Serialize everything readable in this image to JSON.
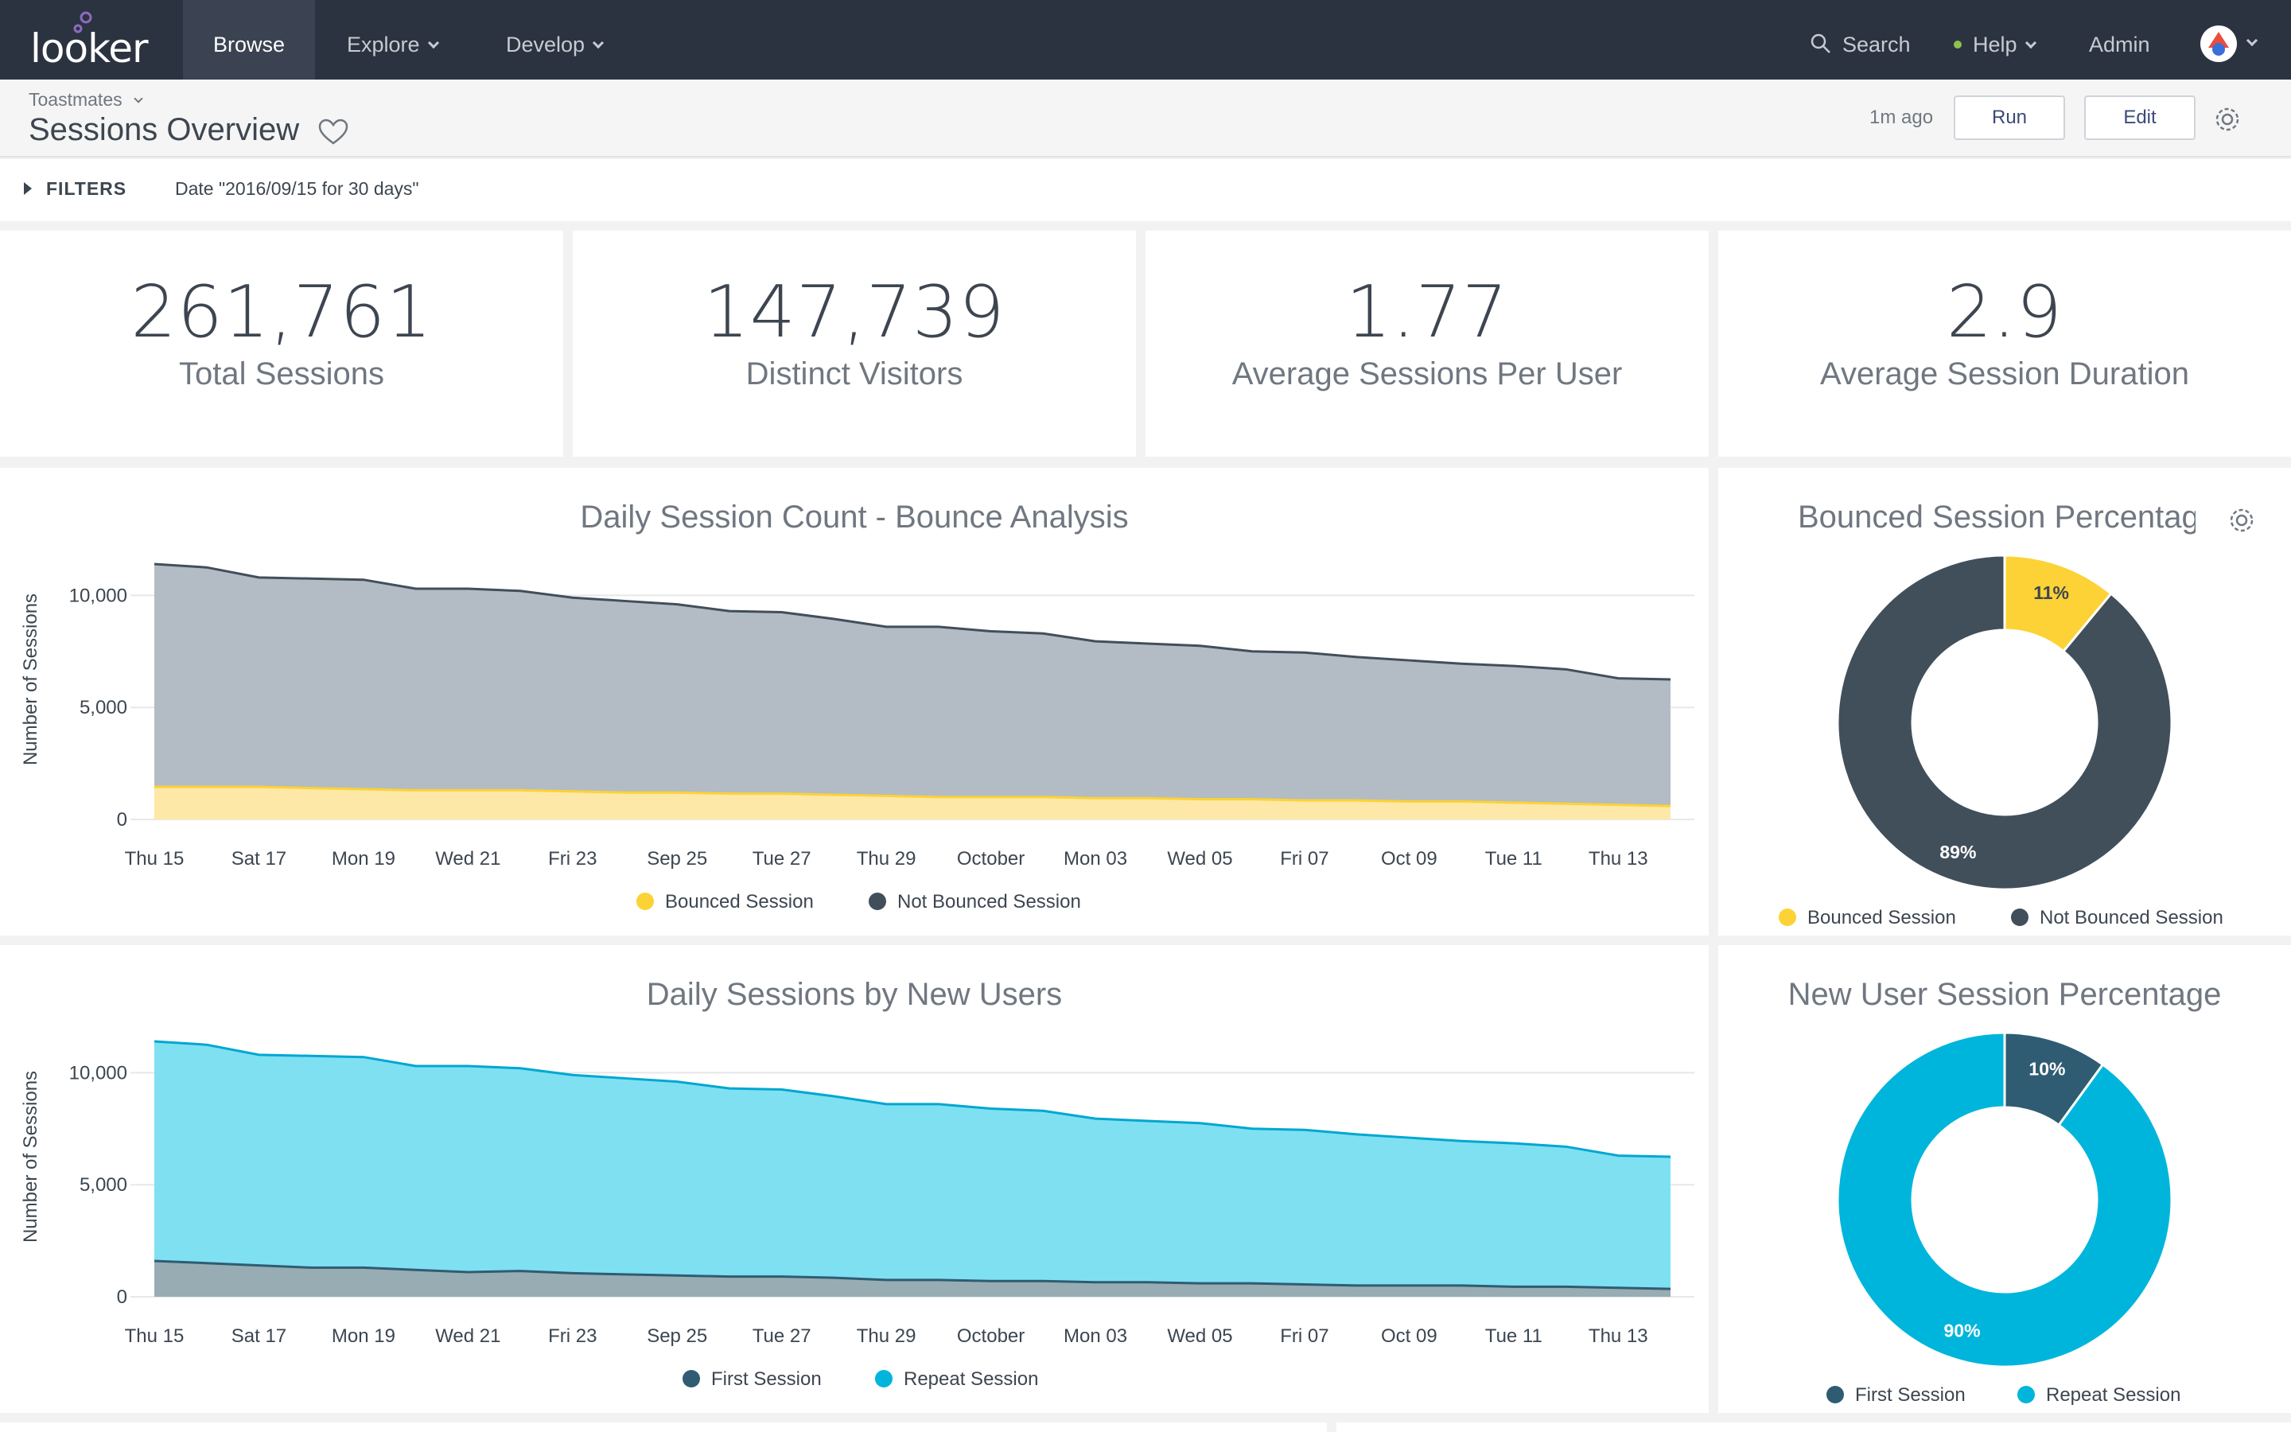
{
  "nav": {
    "logo": "looker",
    "items": [
      {
        "label": "Browse",
        "active": true
      },
      {
        "label": "Explore",
        "dropdown": true
      },
      {
        "label": "Develop",
        "dropdown": true
      }
    ],
    "search_label": "Search",
    "help_label": "Help",
    "admin_label": "Admin"
  },
  "header": {
    "breadcrumb": "Toastmates",
    "title": "Sessions Overview",
    "last_run": "1m ago",
    "run_label": "Run",
    "edit_label": "Edit"
  },
  "filters": {
    "label": "FILTERS",
    "value": "Date \"2016/09/15 for 30 days\""
  },
  "kpis": [
    {
      "value": "261,761",
      "label": "Total Sessions"
    },
    {
      "value": "147,739",
      "label": "Distinct Visitors"
    },
    {
      "value": "1.77",
      "label": "Average Sessions Per User"
    },
    {
      "value": "2.9",
      "label": "Average Session Duration"
    }
  ],
  "colors": {
    "nav_bg": "#2c3340",
    "dark_slate": "#414f5b",
    "gray_area": "#b3bcc4",
    "yellow": "#fcd236",
    "yellow_area": "#fde8a8",
    "cyan": "#00b5dc",
    "cyan_area": "#7fe0f2",
    "cyan_line": "#00a7d0",
    "teal_dark": "#2f5c72",
    "first_area": "#98acb3"
  },
  "chart_data": [
    {
      "type": "area",
      "title": "Daily Session Count - Bounce Analysis",
      "ylabel": "Number of Sessions",
      "ylim": [
        0,
        12500
      ],
      "yticks": [
        "0",
        "5,000",
        "10,000"
      ],
      "ytick_values": [
        0,
        5000,
        10000
      ],
      "xtick_labels": [
        "Thu 15",
        "Sat 17",
        "Mon 19",
        "Wed 21",
        "Fri 23",
        "Sep 25",
        "Tue 27",
        "Thu 29",
        "October",
        "Mon 03",
        "Wed 05",
        "Fri 07",
        "Oct 09",
        "Tue 11",
        "Thu 13"
      ],
      "x": [
        "2016-09-15",
        "2016-09-16",
        "2016-09-17",
        "2016-09-18",
        "2016-09-19",
        "2016-09-20",
        "2016-09-21",
        "2016-09-22",
        "2016-09-23",
        "2016-09-24",
        "2016-09-25",
        "2016-09-26",
        "2016-09-27",
        "2016-09-28",
        "2016-09-29",
        "2016-09-30",
        "2016-10-01",
        "2016-10-02",
        "2016-10-03",
        "2016-10-04",
        "2016-10-05",
        "2016-10-06",
        "2016-10-07",
        "2016-10-08",
        "2016-10-09",
        "2016-10-10",
        "2016-10-11",
        "2016-10-12",
        "2016-10-13",
        "2016-10-14"
      ],
      "stacked": true,
      "series": [
        {
          "name": "Bounced Session",
          "values": [
            1450,
            1450,
            1450,
            1400,
            1350,
            1300,
            1300,
            1300,
            1250,
            1200,
            1200,
            1150,
            1150,
            1100,
            1050,
            1000,
            1000,
            1000,
            950,
            950,
            900,
            900,
            850,
            850,
            800,
            800,
            750,
            700,
            650,
            600
          ]
        },
        {
          "name": "Not Bounced Session",
          "values": [
            9950,
            9800,
            9350,
            9350,
            9350,
            9000,
            9000,
            8900,
            8650,
            8550,
            8400,
            8150,
            8100,
            7850,
            7550,
            7600,
            7400,
            7300,
            7000,
            6900,
            6850,
            6600,
            6600,
            6400,
            6300,
            6150,
            6100,
            6000,
            5650,
            5650
          ]
        }
      ],
      "totals": [
        11400,
        11250,
        10800,
        10750,
        10700,
        10300,
        10300,
        10200,
        9900,
        9750,
        9600,
        9300,
        9250,
        8950,
        8600,
        8600,
        8400,
        8300,
        7950,
        7850,
        7750,
        7500,
        7450,
        7250,
        7100,
        6950,
        6850,
        6700,
        6300,
        6250
      ]
    },
    {
      "type": "pie",
      "title": "Bounced Session Percentag",
      "donut": true,
      "categories": [
        "Bounced Session",
        "Not Bounced Session"
      ],
      "values": [
        11,
        89
      ],
      "labels": [
        "11%",
        "89%"
      ]
    },
    {
      "type": "area",
      "title": "Daily Sessions by New Users",
      "ylabel": "Number of Sessions",
      "ylim": [
        0,
        12500
      ],
      "yticks": [
        "0",
        "5,000",
        "10,000"
      ],
      "ytick_values": [
        0,
        5000,
        10000
      ],
      "xtick_labels": [
        "Thu 15",
        "Sat 17",
        "Mon 19",
        "Wed 21",
        "Fri 23",
        "Sep 25",
        "Tue 27",
        "Thu 29",
        "October",
        "Mon 03",
        "Wed 05",
        "Fri 07",
        "Oct 09",
        "Tue 11",
        "Thu 13"
      ],
      "x": [
        "2016-09-15",
        "2016-09-16",
        "2016-09-17",
        "2016-09-18",
        "2016-09-19",
        "2016-09-20",
        "2016-09-21",
        "2016-09-22",
        "2016-09-23",
        "2016-09-24",
        "2016-09-25",
        "2016-09-26",
        "2016-09-27",
        "2016-09-28",
        "2016-09-29",
        "2016-09-30",
        "2016-10-01",
        "2016-10-02",
        "2016-10-03",
        "2016-10-04",
        "2016-10-05",
        "2016-10-06",
        "2016-10-07",
        "2016-10-08",
        "2016-10-09",
        "2016-10-10",
        "2016-10-11",
        "2016-10-12",
        "2016-10-13",
        "2016-10-14"
      ],
      "stacked": true,
      "series": [
        {
          "name": "First Session",
          "values": [
            1600,
            1500,
            1400,
            1300,
            1300,
            1200,
            1100,
            1150,
            1050,
            1000,
            950,
            900,
            900,
            850,
            750,
            750,
            700,
            700,
            650,
            650,
            600,
            600,
            550,
            500,
            500,
            500,
            450,
            450,
            400,
            350
          ]
        },
        {
          "name": "Repeat Session",
          "values": [
            9800,
            9750,
            9400,
            9450,
            9400,
            9100,
            9200,
            9050,
            8850,
            8750,
            8650,
            8400,
            8350,
            8100,
            7850,
            7850,
            7700,
            7600,
            7300,
            7200,
            7150,
            6900,
            6900,
            6750,
            6600,
            6450,
            6400,
            6250,
            5900,
            5900
          ]
        }
      ],
      "totals": [
        11400,
        11250,
        10800,
        10750,
        10700,
        10300,
        10300,
        10200,
        9900,
        9750,
        9600,
        9300,
        9250,
        8950,
        8600,
        8600,
        8400,
        8300,
        7950,
        7850,
        7750,
        7500,
        7450,
        7250,
        7100,
        6950,
        6850,
        6700,
        6300,
        6250
      ]
    },
    {
      "type": "pie",
      "title": "New User Session Percentage",
      "donut": true,
      "categories": [
        "First Session",
        "Repeat Session"
      ],
      "values": [
        10,
        90
      ],
      "labels": [
        "10%",
        "90%"
      ]
    }
  ]
}
